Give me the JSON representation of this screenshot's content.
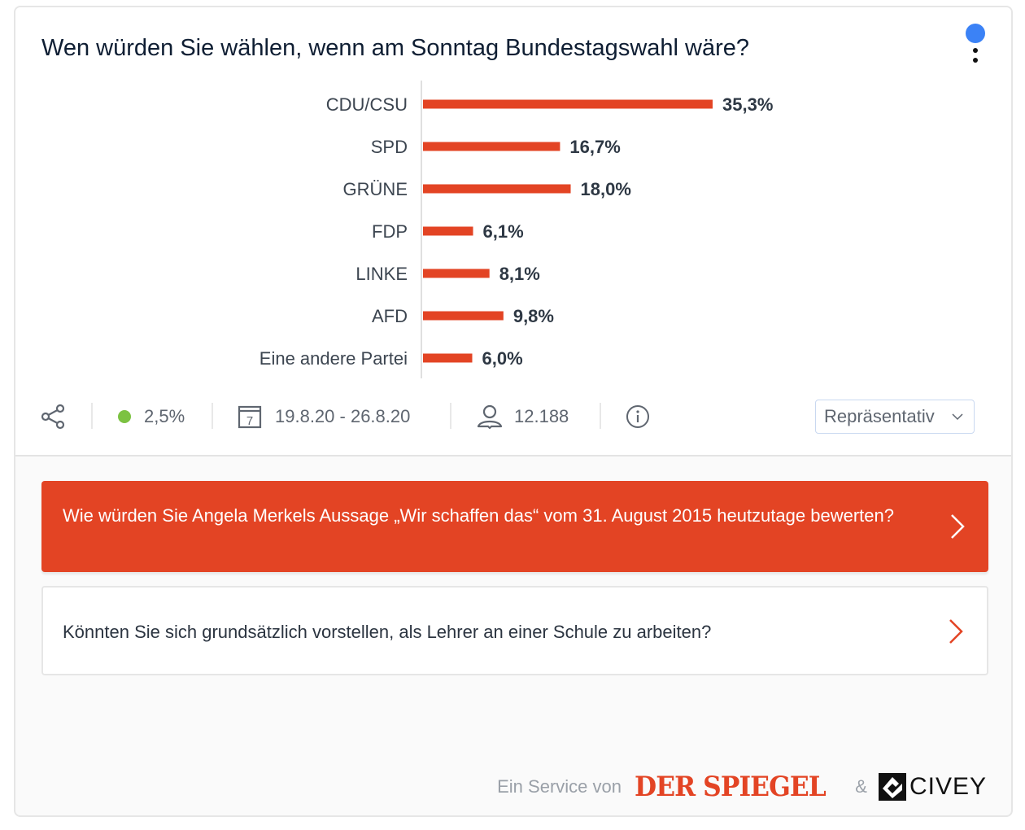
{
  "widget": {
    "title": "Wen würden Sie wählen, wenn am Sonntag Bundestagswahl wäre?",
    "menu_icon": "more-vertical-icon",
    "notification_color": "#3b82f6"
  },
  "chart_data": {
    "type": "bar",
    "orientation": "horizontal",
    "title": "Wen würden Sie wählen, wenn am Sonntag Bundestagswahl wäre?",
    "categories": [
      "CDU/CSU",
      "SPD",
      "GRÜNE",
      "FDP",
      "LINKE",
      "AFD",
      "Eine andere Partei"
    ],
    "values": [
      35.3,
      16.7,
      18.0,
      6.1,
      8.1,
      9.8,
      6.0
    ],
    "labels": [
      "35,3%",
      "16,7%",
      "18,0%",
      "6,1%",
      "8,1%",
      "9,8%",
      "6,0%"
    ],
    "unit": "%",
    "bar_color": "#e34424",
    "xlabel": "",
    "ylabel": "",
    "xlim": [
      0,
      35.3
    ],
    "grid": false,
    "legend": "none"
  },
  "meta": {
    "share_icon": "share-icon",
    "error_margin": "2,5%",
    "error_status_color": "#7cc242",
    "calendar_icon": "calendar-icon",
    "calendar_day": "7",
    "date_range": "19.8.20 - 26.8.20",
    "user_icon": "user-icon",
    "respondents": "12.188",
    "info_icon": "info-icon",
    "sample_select": {
      "selected": "Repräsentativ"
    }
  },
  "questions": [
    {
      "text": "Wie würden Sie Angela Merkels Aussage „Wir schaffen das“ vom 31. August 2015 heutzutage bewerten?",
      "highlighted": true
    },
    {
      "text": "Könnten Sie sich grundsätzlich vorstellen, als Lehrer an einer Schule zu arbeiten?",
      "highlighted": false
    }
  ],
  "footer": {
    "service_label": "Ein Service von",
    "partner1": "DER SPIEGEL",
    "ampersand": "&",
    "partner2": "CIVEY"
  }
}
